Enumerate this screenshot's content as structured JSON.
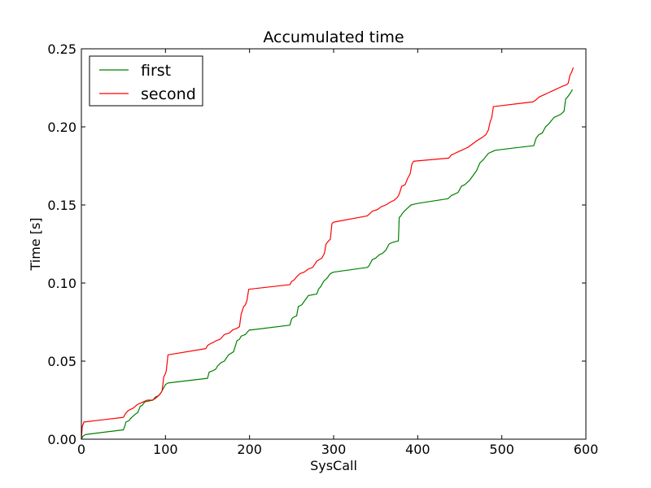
{
  "chart_data": {
    "type": "line",
    "title": "Accumulated time",
    "xlabel": "SysCall",
    "ylabel": "Time [s]",
    "xlim": [
      0,
      600
    ],
    "ylim": [
      0.0,
      0.25
    ],
    "xticks": [
      0,
      100,
      200,
      300,
      400,
      500,
      600
    ],
    "xtick_labels": [
      "0",
      "100",
      "200",
      "300",
      "400",
      "500",
      "600"
    ],
    "yticks": [
      0.0,
      0.05,
      0.1,
      0.15,
      0.2,
      0.25
    ],
    "ytick_labels": [
      "0.00",
      "0.05",
      "0.10",
      "0.15",
      "0.20",
      "0.25"
    ],
    "grid": false,
    "legend_position": "top-left",
    "series": [
      {
        "name": "first",
        "color": "#008000",
        "x": [
          0,
          2,
          5,
          50,
          52,
          53,
          57,
          58,
          62,
          64,
          67,
          70,
          73,
          74,
          76,
          85,
          88,
          92,
          95,
          98,
          100,
          103,
          150,
          152,
          157,
          160,
          162,
          166,
          170,
          175,
          181,
          185,
          188,
          190,
          195,
          198,
          200,
          202,
          248,
          250,
          252,
          256,
          258,
          262,
          266,
          270,
          280,
          282,
          285,
          288,
          292,
          296,
          300,
          340,
          342,
          346,
          350,
          354,
          358,
          362,
          366,
          370,
          377,
          378,
          380,
          381,
          384,
          388,
          392,
          400,
          436,
          440,
          444,
          448,
          452,
          456,
          462,
          466,
          470,
          474,
          478,
          481,
          484,
          488,
          492,
          538,
          541,
          544,
          548,
          552,
          556,
          562,
          566,
          570,
          574,
          576,
          578,
          582,
          584
        ],
        "y": [
          0.0,
          0.002,
          0.003,
          0.006,
          0.009,
          0.011,
          0.012,
          0.013,
          0.015,
          0.016,
          0.017,
          0.021,
          0.022,
          0.023,
          0.024,
          0.025,
          0.027,
          0.028,
          0.03,
          0.033,
          0.035,
          0.036,
          0.039,
          0.043,
          0.044,
          0.045,
          0.047,
          0.049,
          0.05,
          0.054,
          0.056,
          0.063,
          0.064,
          0.066,
          0.067,
          0.069,
          0.07,
          0.07,
          0.073,
          0.077,
          0.078,
          0.079,
          0.085,
          0.086,
          0.089,
          0.092,
          0.093,
          0.096,
          0.098,
          0.101,
          0.103,
          0.106,
          0.107,
          0.11,
          0.111,
          0.115,
          0.116,
          0.118,
          0.119,
          0.121,
          0.125,
          0.126,
          0.127,
          0.142,
          0.143,
          0.144,
          0.146,
          0.148,
          0.15,
          0.151,
          0.154,
          0.156,
          0.157,
          0.158,
          0.162,
          0.163,
          0.166,
          0.169,
          0.172,
          0.177,
          0.179,
          0.181,
          0.183,
          0.184,
          0.185,
          0.188,
          0.193,
          0.195,
          0.196,
          0.2,
          0.202,
          0.206,
          0.207,
          0.208,
          0.21,
          0.218,
          0.219,
          0.222,
          0.224
        ]
      },
      {
        "name": "second",
        "color": "#ff0000",
        "x": [
          0,
          1,
          3,
          50,
          52,
          55,
          58,
          62,
          66,
          70,
          74,
          78,
          84,
          88,
          92,
          95,
          96,
          98,
          100,
          101,
          103,
          148,
          150,
          153,
          157,
          160,
          165,
          170,
          176,
          180,
          185,
          188,
          190,
          193,
          195,
          197,
          199,
          248,
          250,
          253,
          256,
          260,
          265,
          270,
          275,
          280,
          286,
          289,
          291,
          294,
          296,
          298,
          300,
          340,
          342,
          346,
          352,
          357,
          362,
          368,
          372,
          374,
          376,
          378,
          381,
          385,
          388,
          391,
          393,
          395,
          437,
          440,
          444,
          448,
          452,
          456,
          460,
          465,
          470,
          476,
          481,
          484,
          486,
          488,
          490,
          537,
          540,
          544,
          548,
          552,
          556,
          560,
          564,
          568,
          572,
          577,
          579,
          581,
          583,
          585
        ],
        "y": [
          0.0,
          0.008,
          0.011,
          0.014,
          0.016,
          0.018,
          0.019,
          0.02,
          0.022,
          0.023,
          0.024,
          0.025,
          0.025,
          0.026,
          0.028,
          0.03,
          0.031,
          0.04,
          0.042,
          0.044,
          0.054,
          0.058,
          0.06,
          0.061,
          0.062,
          0.063,
          0.064,
          0.067,
          0.068,
          0.07,
          0.071,
          0.072,
          0.08,
          0.085,
          0.086,
          0.089,
          0.096,
          0.099,
          0.101,
          0.102,
          0.104,
          0.106,
          0.107,
          0.109,
          0.11,
          0.114,
          0.116,
          0.119,
          0.125,
          0.127,
          0.128,
          0.138,
          0.139,
          0.143,
          0.144,
          0.146,
          0.147,
          0.149,
          0.15,
          0.152,
          0.153,
          0.154,
          0.155,
          0.157,
          0.162,
          0.163,
          0.167,
          0.17,
          0.176,
          0.178,
          0.18,
          0.182,
          0.183,
          0.184,
          0.185,
          0.186,
          0.187,
          0.189,
          0.191,
          0.193,
          0.195,
          0.198,
          0.203,
          0.206,
          0.213,
          0.216,
          0.217,
          0.219,
          0.22,
          0.221,
          0.222,
          0.223,
          0.224,
          0.225,
          0.226,
          0.227,
          0.228,
          0.233,
          0.235,
          0.238
        ]
      }
    ]
  }
}
